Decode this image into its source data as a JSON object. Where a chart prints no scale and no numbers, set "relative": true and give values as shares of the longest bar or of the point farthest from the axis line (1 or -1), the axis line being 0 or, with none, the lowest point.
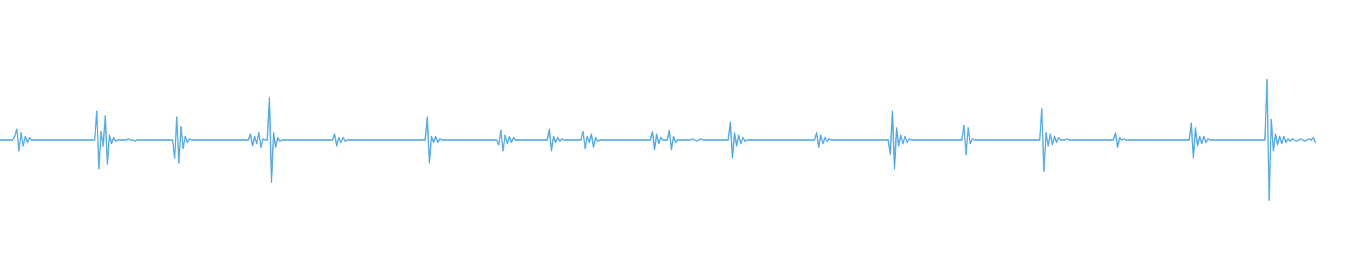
{
  "chart_data": {
    "type": "line",
    "relative": true,
    "categories": [
      null,
      null,
      null,
      null,
      null,
      null,
      null,
      null,
      null,
      null,
      null,
      null,
      null,
      null,
      null,
      null,
      null,
      null,
      null,
      null,
      null,
      null,
      null,
      null,
      null,
      null,
      null,
      null,
      null,
      null,
      null,
      null,
      null,
      null,
      null,
      null,
      null,
      null,
      null,
      null,
      null,
      null,
      null,
      null,
      null,
      null,
      null,
      null,
      null,
      null,
      null,
      null,
      null,
      null,
      null,
      null,
      null,
      null,
      null,
      null,
      null,
      null,
      null,
      null,
      null,
      null,
      null,
      null,
      null,
      null,
      null,
      null,
      null,
      null,
      null,
      null,
      null,
      null,
      null,
      null,
      null,
      null,
      null,
      null,
      null,
      null,
      null,
      null,
      null,
      null,
      null,
      null,
      null,
      null,
      null,
      null,
      null,
      null,
      null,
      null,
      null,
      null,
      null,
      null,
      null,
      null,
      null,
      null,
      null,
      null,
      null,
      null,
      null,
      null,
      null,
      null,
      null,
      null,
      null,
      null,
      null,
      null,
      null,
      null,
      null,
      null,
      null,
      null,
      null,
      null,
      null,
      null,
      null,
      null,
      null,
      null,
      null,
      null,
      null,
      null,
      null,
      null,
      null,
      null,
      null,
      null,
      null,
      null,
      null,
      null,
      null,
      null,
      null,
      null,
      null,
      null,
      null,
      null,
      null,
      null,
      null,
      null,
      null,
      null,
      null,
      null,
      null,
      null,
      null,
      null,
      null,
      null,
      null,
      null,
      null,
      null,
      null,
      null,
      null,
      null,
      null,
      null,
      null,
      null,
      null,
      null,
      null,
      null,
      null,
      null,
      null,
      null,
      null,
      null,
      null,
      null,
      null,
      null,
      null,
      null,
      null,
      null,
      null,
      null,
      null,
      null,
      null,
      null,
      null,
      null,
      null,
      null,
      null,
      null,
      null,
      null,
      null,
      null,
      null,
      null,
      null,
      null,
      null,
      null,
      null,
      null,
      null,
      null,
      null,
      null,
      null,
      null,
      null,
      null,
      null,
      null,
      null,
      null,
      null,
      null,
      null,
      null,
      null,
      null,
      null,
      null,
      null,
      null,
      null,
      null,
      null,
      null,
      null,
      null,
      null,
      null,
      null,
      null,
      null,
      null,
      null,
      null,
      null,
      null,
      null,
      null,
      null,
      null,
      null,
      null,
      null,
      null,
      null,
      null,
      null,
      null,
      null,
      null,
      null,
      null,
      null,
      null,
      null,
      null,
      null,
      null,
      null,
      null,
      null,
      null,
      null,
      null,
      null,
      null,
      null,
      null,
      null,
      null,
      null,
      null,
      null,
      null,
      null,
      null,
      null,
      null,
      null,
      null,
      null,
      null,
      null,
      null,
      null,
      null,
      null,
      null,
      null,
      null,
      null,
      null,
      null,
      null,
      null,
      null,
      null,
      null,
      null,
      null,
      null,
      null,
      null,
      null,
      null,
      null,
      null,
      null,
      null,
      null,
      null,
      null,
      null,
      null,
      null,
      null,
      null,
      null,
      null,
      null,
      null,
      null,
      null,
      null,
      null,
      null,
      null,
      null,
      null,
      null,
      null,
      null,
      null,
      null,
      null,
      null,
      null,
      null,
      null,
      null,
      null,
      null,
      null,
      null,
      null,
      null,
      null,
      null,
      null,
      null,
      null,
      null,
      null,
      null,
      null,
      null,
      null,
      null,
      null,
      null,
      null,
      null,
      null,
      null,
      null,
      null,
      null,
      null,
      null,
      null,
      null,
      null,
      null,
      null,
      null,
      null,
      null,
      null,
      null,
      null,
      null,
      null,
      null,
      null,
      null,
      null,
      null,
      null,
      null,
      null,
      null,
      null,
      null,
      null,
      null,
      null,
      null,
      null,
      null,
      null,
      null,
      null,
      null,
      null,
      null,
      null,
      null,
      null,
      null,
      null,
      null,
      null,
      null,
      null,
      null,
      null,
      null,
      null,
      null,
      null,
      null,
      null,
      null,
      null,
      null,
      null,
      null,
      null,
      null,
      null,
      null,
      null,
      null,
      null,
      null,
      null,
      null,
      null,
      null,
      null,
      null,
      null,
      null,
      null,
      null,
      null,
      null,
      null,
      null,
      null,
      null,
      null,
      null,
      null,
      null,
      null,
      null,
      null,
      null,
      null,
      null,
      null,
      null,
      null,
      null,
      null,
      null,
      null,
      null,
      null,
      null,
      null,
      null,
      null,
      null,
      null,
      null,
      null,
      null,
      null,
      null,
      null,
      null,
      null,
      null,
      null,
      null,
      null,
      null,
      null,
      null,
      null,
      null,
      null,
      null,
      null,
      null,
      null,
      null,
      null,
      null,
      null,
      null,
      null,
      null,
      null,
      null,
      null,
      null,
      null,
      null,
      null,
      null,
      null,
      null,
      null,
      null,
      null,
      null,
      null,
      null,
      null,
      null,
      null,
      null,
      null,
      null,
      null,
      null,
      null,
      null,
      null,
      null,
      null,
      null,
      null,
      null,
      null,
      null,
      null,
      null,
      null,
      null,
      null,
      null,
      null,
      null,
      null,
      null,
      null,
      null,
      null,
      null,
      null,
      null,
      null,
      null,
      null,
      null,
      null,
      null,
      null,
      null,
      null,
      null,
      null,
      null,
      null,
      null,
      null,
      null,
      null,
      null,
      null,
      null,
      null,
      null,
      null,
      null,
      null,
      null,
      null,
      null,
      null,
      null,
      null,
      null,
      null,
      null,
      null,
      null,
      null,
      null,
      null,
      null,
      null,
      null,
      null
    ],
    "series": [
      {
        "color": "#5dade2",
        "values": [
          0.5,
          0.5,
          0.5,
          0.5,
          0.5,
          0.5,
          0.5,
          0.53,
          0.59,
          0.41,
          0.56,
          0.45,
          0.53,
          0.48,
          0.52,
          0.5,
          0.5,
          0.5,
          0.5,
          0.5,
          0.5,
          0.5,
          0.5,
          0.5,
          0.5,
          0.5,
          0.5,
          0.5,
          0.5,
          0.5,
          0.5,
          0.5,
          0.5,
          0.5,
          0.5,
          0.5,
          0.5,
          0.5,
          0.5,
          0.5,
          0.5,
          0.5,
          0.5,
          0.5,
          0.5,
          0.5,
          0.74,
          0.26,
          0.57,
          0.45,
          0.7,
          0.3,
          0.54,
          0.47,
          0.52,
          0.49,
          0.5,
          0.5,
          0.5,
          0.5,
          0.5,
          0.51,
          0.5,
          0.5,
          0.49,
          0.5,
          0.5,
          0.5,
          0.5,
          0.5,
          0.5,
          0.5,
          0.5,
          0.5,
          0.5,
          0.5,
          0.5,
          0.5,
          0.5,
          0.5,
          0.5,
          0.5,
          0.5,
          0.35,
          0.69,
          0.31,
          0.61,
          0.43,
          0.53,
          0.48,
          0.51,
          0.5,
          0.5,
          0.5,
          0.5,
          0.5,
          0.5,
          0.5,
          0.5,
          0.5,
          0.5,
          0.5,
          0.5,
          0.5,
          0.5,
          0.5,
          0.5,
          0.5,
          0.5,
          0.5,
          0.5,
          0.5,
          0.5,
          0.5,
          0.5,
          0.5,
          0.5,
          0.5,
          0.5,
          0.55,
          0.45,
          0.53,
          0.47,
          0.56,
          0.44,
          0.51,
          0.5,
          0.5,
          0.85,
          0.15,
          0.56,
          0.44,
          0.52,
          0.49,
          0.5,
          0.5,
          0.5,
          0.5,
          0.5,
          0.5,
          0.5,
          0.5,
          0.5,
          0.5,
          0.5,
          0.5,
          0.5,
          0.5,
          0.5,
          0.5,
          0.5,
          0.5,
          0.5,
          0.5,
          0.5,
          0.5,
          0.5,
          0.5,
          0.5,
          0.55,
          0.45,
          0.52,
          0.48,
          0.52,
          0.49,
          0.5,
          0.5,
          0.5,
          0.5,
          0.5,
          0.5,
          0.5,
          0.5,
          0.5,
          0.5,
          0.5,
          0.5,
          0.5,
          0.5,
          0.5,
          0.5,
          0.5,
          0.5,
          0.5,
          0.5,
          0.5,
          0.5,
          0.5,
          0.5,
          0.5,
          0.5,
          0.5,
          0.5,
          0.5,
          0.5,
          0.5,
          0.5,
          0.5,
          0.5,
          0.5,
          0.5,
          0.5,
          0.5,
          0.69,
          0.31,
          0.53,
          0.48,
          0.53,
          0.48,
          0.51,
          0.5,
          0.5,
          0.5,
          0.5,
          0.5,
          0.5,
          0.5,
          0.5,
          0.5,
          0.5,
          0.5,
          0.5,
          0.5,
          0.5,
          0.5,
          0.5,
          0.5,
          0.5,
          0.5,
          0.5,
          0.5,
          0.5,
          0.5,
          0.5,
          0.5,
          0.5,
          0.5,
          0.46,
          0.58,
          0.41,
          0.54,
          0.47,
          0.53,
          0.48,
          0.52,
          0.5,
          0.5,
          0.5,
          0.5,
          0.5,
          0.5,
          0.5,
          0.5,
          0.5,
          0.5,
          0.5,
          0.5,
          0.5,
          0.5,
          0.5,
          0.5,
          0.59,
          0.41,
          0.53,
          0.48,
          0.52,
          0.49,
          0.51,
          0.5,
          0.5,
          0.5,
          0.5,
          0.5,
          0.5,
          0.5,
          0.5,
          0.5,
          0.57,
          0.43,
          0.53,
          0.48,
          0.55,
          0.44,
          0.52,
          0.49,
          0.5,
          0.5,
          0.5,
          0.5,
          0.5,
          0.5,
          0.5,
          0.5,
          0.5,
          0.5,
          0.5,
          0.5,
          0.5,
          0.5,
          0.5,
          0.5,
          0.5,
          0.5,
          0.5,
          0.5,
          0.5,
          0.5,
          0.5,
          0.5,
          0.5,
          0.57,
          0.42,
          0.55,
          0.47,
          0.52,
          0.5,
          0.5,
          0.5,
          0.58,
          0.42,
          0.53,
          0.48,
          0.5,
          0.5,
          0.5,
          0.5,
          0.5,
          0.5,
          0.5,
          0.51,
          0.5,
          0.49,
          0.5,
          0.51,
          0.5,
          0.5,
          0.5,
          0.5,
          0.5,
          0.5,
          0.5,
          0.5,
          0.5,
          0.5,
          0.5,
          0.5,
          0.5,
          0.65,
          0.35,
          0.56,
          0.45,
          0.54,
          0.47,
          0.52,
          0.49,
          0.5,
          0.5,
          0.5,
          0.5,
          0.5,
          0.5,
          0.5,
          0.5,
          0.5,
          0.5,
          0.5,
          0.5,
          0.5,
          0.5,
          0.5,
          0.5,
          0.5,
          0.5,
          0.5,
          0.5,
          0.5,
          0.5,
          0.5,
          0.5,
          0.5,
          0.5,
          0.5,
          0.5,
          0.5,
          0.5,
          0.5,
          0.5,
          0.5,
          0.56,
          0.44,
          0.54,
          0.47,
          0.52,
          0.49,
          0.51,
          0.5,
          0.5,
          0.5,
          0.5,
          0.5,
          0.5,
          0.5,
          0.5,
          0.5,
          0.5,
          0.5,
          0.5,
          0.5,
          0.5,
          0.5,
          0.5,
          0.5,
          0.5,
          0.5,
          0.5,
          0.5,
          0.5,
          0.5,
          0.5,
          0.5,
          0.5,
          0.5,
          0.5,
          0.38,
          0.74,
          0.26,
          0.6,
          0.45,
          0.54,
          0.47,
          0.53,
          0.48,
          0.51,
          0.5,
          0.5,
          0.5,
          0.5,
          0.5,
          0.5,
          0.5,
          0.5,
          0.5,
          0.5,
          0.5,
          0.5,
          0.5,
          0.5,
          0.5,
          0.5,
          0.5,
          0.5,
          0.5,
          0.5,
          0.5,
          0.5,
          0.5,
          0.5,
          0.5,
          0.62,
          0.38,
          0.6,
          0.47,
          0.51,
          0.5,
          0.5,
          0.5,
          0.5,
          0.5,
          0.5,
          0.5,
          0.5,
          0.5,
          0.5,
          0.5,
          0.5,
          0.5,
          0.5,
          0.5,
          0.5,
          0.5,
          0.5,
          0.5,
          0.5,
          0.5,
          0.5,
          0.5,
          0.5,
          0.5,
          0.5,
          0.5,
          0.5,
          0.5,
          0.5,
          0.5,
          0.5,
          0.76,
          0.24,
          0.56,
          0.45,
          0.55,
          0.46,
          0.53,
          0.48,
          0.52,
          0.5,
          0.5,
          0.5,
          0.51,
          0.5,
          0.5,
          0.5,
          0.5,
          0.5,
          0.5,
          0.5,
          0.5,
          0.5,
          0.5,
          0.5,
          0.5,
          0.5,
          0.5,
          0.5,
          0.5,
          0.5,
          0.5,
          0.5,
          0.5,
          0.5,
          0.5,
          0.56,
          0.44,
          0.52,
          0.5,
          0.51,
          0.5,
          0.5,
          0.5,
          0.5,
          0.5,
          0.5,
          0.5,
          0.5,
          0.5,
          0.5,
          0.5,
          0.5,
          0.5,
          0.5,
          0.5,
          0.5,
          0.5,
          0.5,
          0.5,
          0.5,
          0.5,
          0.5,
          0.5,
          0.5,
          0.5,
          0.5,
          0.5,
          0.5,
          0.5,
          0.5,
          0.5,
          0.64,
          0.35,
          0.6,
          0.45,
          0.53,
          0.47,
          0.53,
          0.48,
          0.51,
          0.5,
          0.5,
          0.5,
          0.5,
          0.5,
          0.5,
          0.5,
          0.5,
          0.5,
          0.5,
          0.5,
          0.5,
          0.5,
          0.5,
          0.5,
          0.5,
          0.5,
          0.5,
          0.5,
          0.5,
          0.5,
          0.5,
          0.5,
          0.5,
          0.5,
          0.5,
          0.5,
          1,
          0,
          0.67,
          0.41,
          0.55,
          0.46,
          0.53,
          0.47,
          0.53,
          0.48,
          0.51,
          0.49,
          0.51,
          0.5,
          0.49,
          0.5,
          0.51,
          0.5,
          0.49,
          0.5,
          0.51,
          0.5,
          0.52,
          0.48
        ]
      }
    ]
  }
}
